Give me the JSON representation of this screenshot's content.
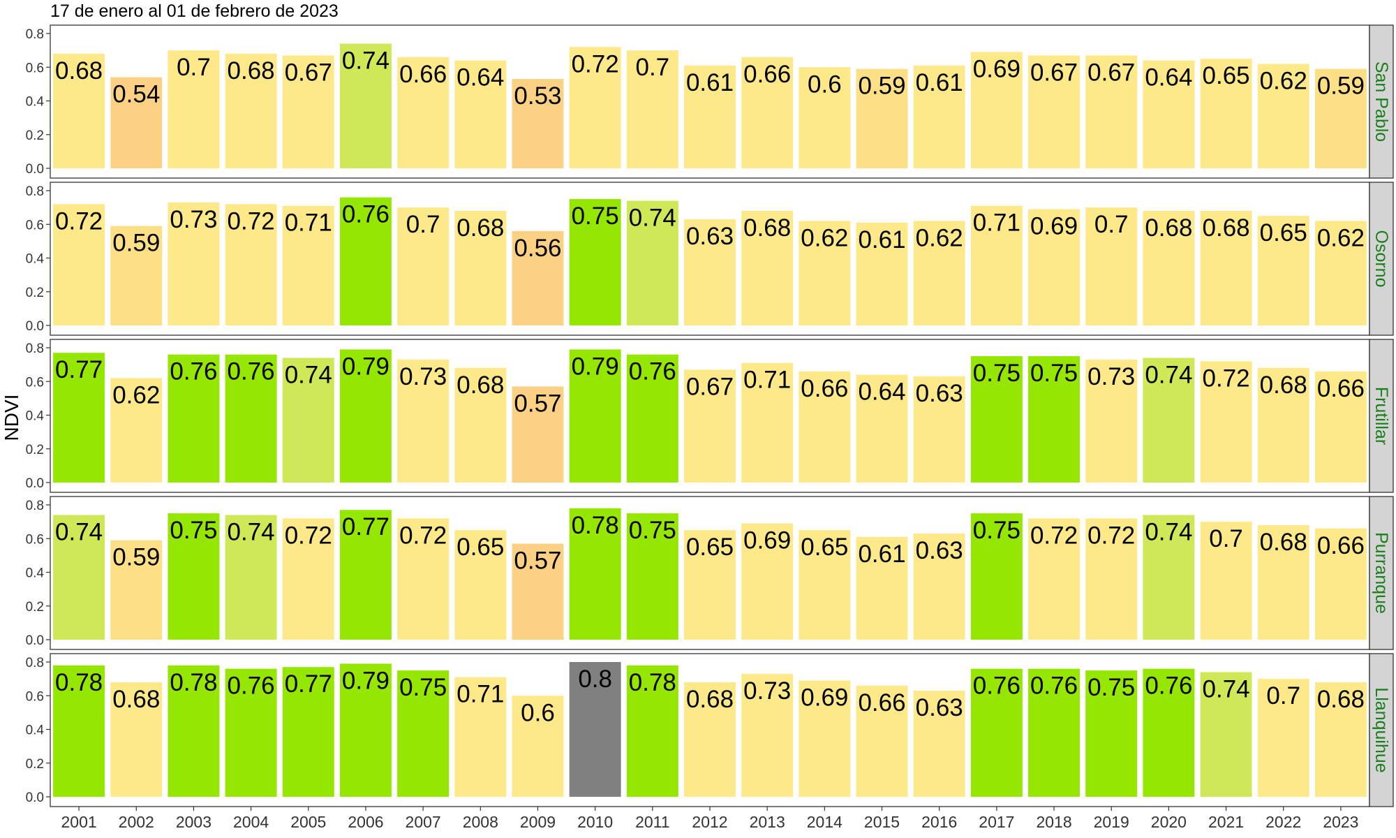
{
  "title": "17 de enero al 01 de febrero de 2023",
  "colors": {
    "green": "#95e600",
    "lightgreen": "#cfe858",
    "yellow": "#fde98a",
    "lightorange": "#fddf85",
    "orange": "#fdd183",
    "gray": "#808080",
    "strip_bg": "#d4d4d4",
    "strip_text": "#1a7f1a"
  },
  "chart_data": {
    "type": "bar",
    "ylabel": "NDVI",
    "xlabel": "",
    "ylim": [
      0,
      0.8
    ],
    "yticks": [
      "0.0",
      "0.2",
      "0.4",
      "0.6",
      "0.8"
    ],
    "categories": [
      "2001",
      "2002",
      "2003",
      "2004",
      "2005",
      "2006",
      "2007",
      "2008",
      "2009",
      "2010",
      "2011",
      "2012",
      "2013",
      "2014",
      "2015",
      "2016",
      "2017",
      "2018",
      "2019",
      "2020",
      "2021",
      "2022",
      "2023"
    ],
    "panels": [
      {
        "name": "San Pablo",
        "values": [
          0.68,
          0.54,
          0.7,
          0.68,
          0.67,
          0.74,
          0.66,
          0.64,
          0.53,
          0.72,
          0.7,
          0.61,
          0.66,
          0.6,
          0.59,
          0.61,
          0.69,
          0.67,
          0.67,
          0.64,
          0.65,
          0.62,
          0.59
        ],
        "labels": [
          "0.68",
          "0.54",
          "0.7",
          "0.68",
          "0.67",
          "0.74",
          "0.66",
          "0.64",
          "0.53",
          "0.72",
          "0.7",
          "0.61",
          "0.66",
          "0.6",
          "0.59",
          "0.61",
          "0.69",
          "0.67",
          "0.67",
          "0.64",
          "0.65",
          "0.62",
          "0.59"
        ],
        "colors": [
          "yellow",
          "orange",
          "yellow",
          "yellow",
          "yellow",
          "lightgreen",
          "yellow",
          "yellow",
          "orange",
          "yellow",
          "yellow",
          "yellow",
          "yellow",
          "yellow",
          "lightorange",
          "yellow",
          "yellow",
          "yellow",
          "yellow",
          "yellow",
          "yellow",
          "yellow",
          "lightorange"
        ]
      },
      {
        "name": "Osorno",
        "values": [
          0.72,
          0.59,
          0.73,
          0.72,
          0.71,
          0.76,
          0.7,
          0.68,
          0.56,
          0.75,
          0.74,
          0.63,
          0.68,
          0.62,
          0.61,
          0.62,
          0.71,
          0.69,
          0.7,
          0.68,
          0.68,
          0.65,
          0.62
        ],
        "labels": [
          "0.72",
          "0.59",
          "0.73",
          "0.72",
          "0.71",
          "0.76",
          "0.7",
          "0.68",
          "0.56",
          "0.75",
          "0.74",
          "0.63",
          "0.68",
          "0.62",
          "0.61",
          "0.62",
          "0.71",
          "0.69",
          "0.7",
          "0.68",
          "0.68",
          "0.65",
          "0.62"
        ],
        "colors": [
          "yellow",
          "lightorange",
          "yellow",
          "yellow",
          "yellow",
          "green",
          "yellow",
          "yellow",
          "orange",
          "green",
          "lightgreen",
          "yellow",
          "yellow",
          "yellow",
          "yellow",
          "yellow",
          "yellow",
          "yellow",
          "yellow",
          "yellow",
          "yellow",
          "yellow",
          "yellow"
        ]
      },
      {
        "name": "Frutillar",
        "values": [
          0.77,
          0.62,
          0.76,
          0.76,
          0.74,
          0.79,
          0.73,
          0.68,
          0.57,
          0.79,
          0.76,
          0.67,
          0.71,
          0.66,
          0.64,
          0.63,
          0.75,
          0.75,
          0.73,
          0.74,
          0.72,
          0.68,
          0.66
        ],
        "labels": [
          "0.77",
          "0.62",
          "0.76",
          "0.76",
          "0.74",
          "0.79",
          "0.73",
          "0.68",
          "0.57",
          "0.79",
          "0.76",
          "0.67",
          "0.71",
          "0.66",
          "0.64",
          "0.63",
          "0.75",
          "0.75",
          "0.73",
          "0.74",
          "0.72",
          "0.68",
          "0.66"
        ],
        "colors": [
          "green",
          "yellow",
          "green",
          "green",
          "lightgreen",
          "green",
          "yellow",
          "yellow",
          "orange",
          "green",
          "green",
          "yellow",
          "yellow",
          "yellow",
          "yellow",
          "yellow",
          "green",
          "green",
          "yellow",
          "lightgreen",
          "yellow",
          "yellow",
          "yellow"
        ]
      },
      {
        "name": "Purranque",
        "values": [
          0.74,
          0.59,
          0.75,
          0.74,
          0.72,
          0.77,
          0.72,
          0.65,
          0.57,
          0.78,
          0.75,
          0.65,
          0.69,
          0.65,
          0.61,
          0.63,
          0.75,
          0.72,
          0.72,
          0.74,
          0.7,
          0.68,
          0.66
        ],
        "labels": [
          "0.74",
          "0.59",
          "0.75",
          "0.74",
          "0.72",
          "0.77",
          "0.72",
          "0.65",
          "0.57",
          "0.78",
          "0.75",
          "0.65",
          "0.69",
          "0.65",
          "0.61",
          "0.63",
          "0.75",
          "0.72",
          "0.72",
          "0.74",
          "0.7",
          "0.68",
          "0.66"
        ],
        "colors": [
          "lightgreen",
          "lightorange",
          "green",
          "lightgreen",
          "yellow",
          "green",
          "yellow",
          "yellow",
          "orange",
          "green",
          "green",
          "yellow",
          "yellow",
          "yellow",
          "yellow",
          "yellow",
          "green",
          "yellow",
          "yellow",
          "lightgreen",
          "yellow",
          "yellow",
          "yellow"
        ]
      },
      {
        "name": "Llanquihue",
        "values": [
          0.78,
          0.68,
          0.78,
          0.76,
          0.77,
          0.79,
          0.75,
          0.71,
          0.6,
          0.8,
          0.78,
          0.68,
          0.73,
          0.69,
          0.66,
          0.63,
          0.76,
          0.76,
          0.75,
          0.76,
          0.74,
          0.7,
          0.68
        ],
        "labels": [
          "0.78",
          "0.68",
          "0.78",
          "0.76",
          "0.77",
          "0.79",
          "0.75",
          "0.71",
          "0.6",
          "0.8",
          "0.78",
          "0.68",
          "0.73",
          "0.69",
          "0.66",
          "0.63",
          "0.76",
          "0.76",
          "0.75",
          "0.76",
          "0.74",
          "0.7",
          "0.68"
        ],
        "colors": [
          "green",
          "yellow",
          "green",
          "green",
          "green",
          "green",
          "green",
          "yellow",
          "yellow",
          "gray",
          "green",
          "yellow",
          "yellow",
          "yellow",
          "yellow",
          "yellow",
          "green",
          "green",
          "green",
          "green",
          "lightgreen",
          "yellow",
          "yellow"
        ]
      }
    ],
    "grid": false,
    "legend": "none"
  }
}
